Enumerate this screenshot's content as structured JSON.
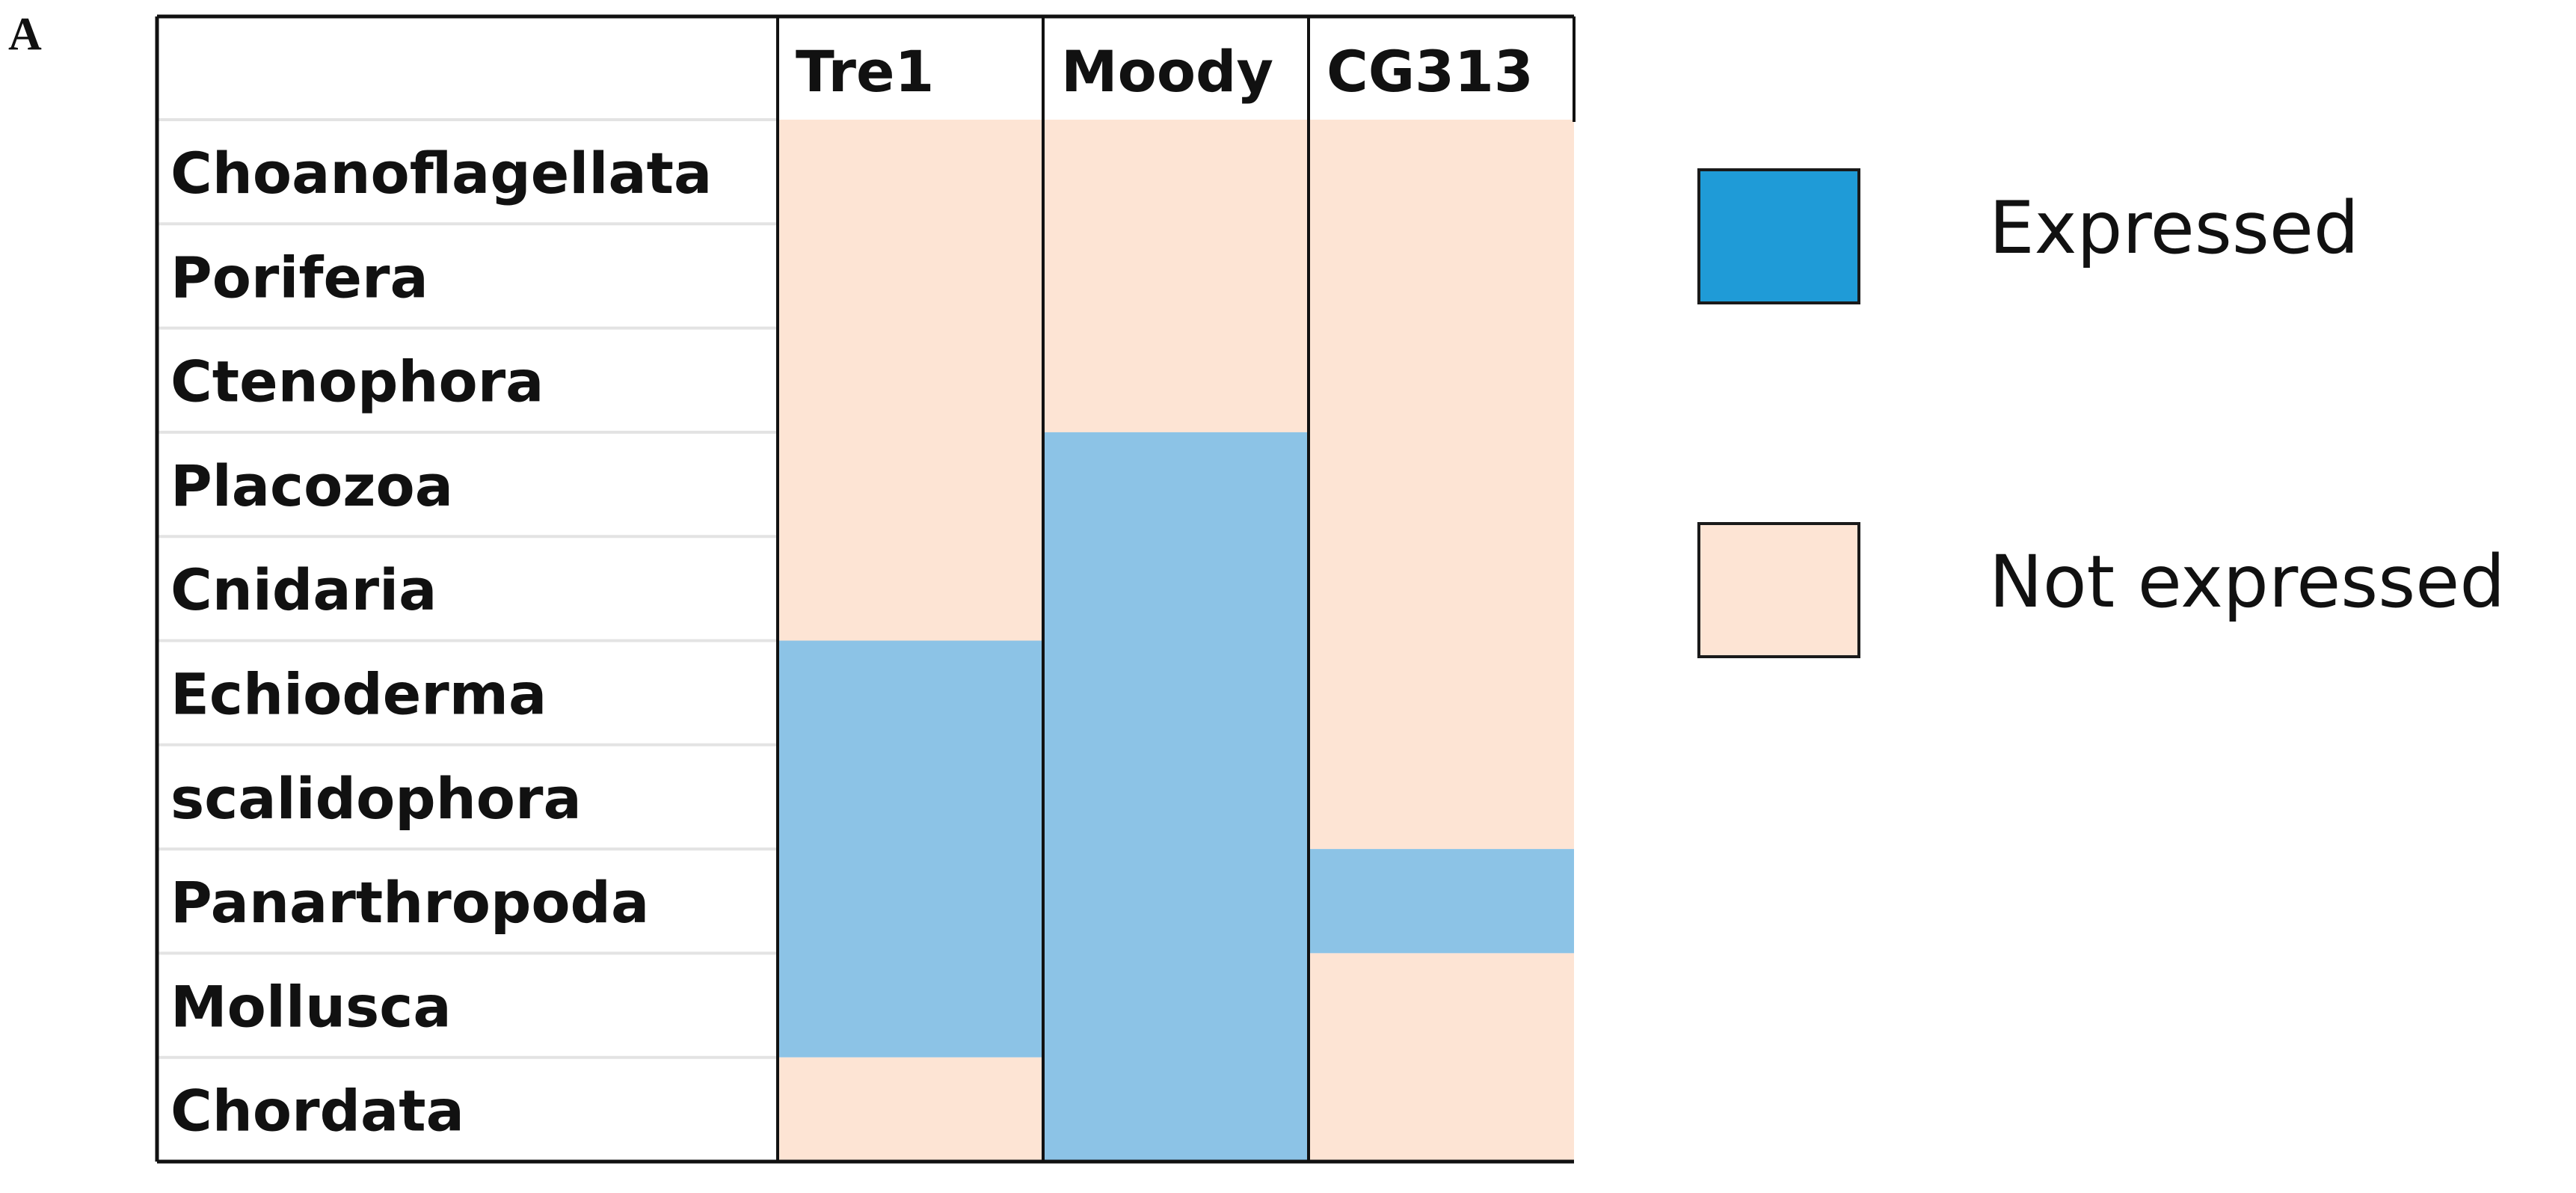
{
  "panel_label": "A",
  "colors": {
    "expressed": "#8cc3e6",
    "not_expressed": "#fde4d4",
    "legend_expressed": "#1f9bd7",
    "legend_not_expressed": "#fde4d4",
    "grid_light": "#e3e3e3",
    "border": "#111111"
  },
  "chart_data": {
    "type": "table",
    "title": "",
    "columns": [
      "Tre1",
      "Moody",
      "CG313"
    ],
    "rows": [
      "Choanoflagellata",
      "Porifera",
      "Ctenophora",
      "Placozoa",
      "Cnidaria",
      "Echioderma",
      "scalidophora",
      "Panarthropoda",
      "Mollusca",
      "Chordata"
    ],
    "values": [
      [
        0,
        0,
        0
      ],
      [
        0,
        0,
        0
      ],
      [
        0,
        0,
        0
      ],
      [
        0,
        1,
        0
      ],
      [
        0,
        1,
        0
      ],
      [
        1,
        1,
        0
      ],
      [
        1,
        1,
        0
      ],
      [
        1,
        1,
        1
      ],
      [
        1,
        1,
        0
      ],
      [
        0,
        1,
        0
      ]
    ],
    "value_meaning": {
      "1": "Expressed",
      "0": "Not expressed"
    }
  },
  "legend": {
    "items": [
      {
        "label": "Expressed",
        "color": "#1f9bd7"
      },
      {
        "label": "Not expressed",
        "color": "#fde4d4"
      }
    ]
  }
}
